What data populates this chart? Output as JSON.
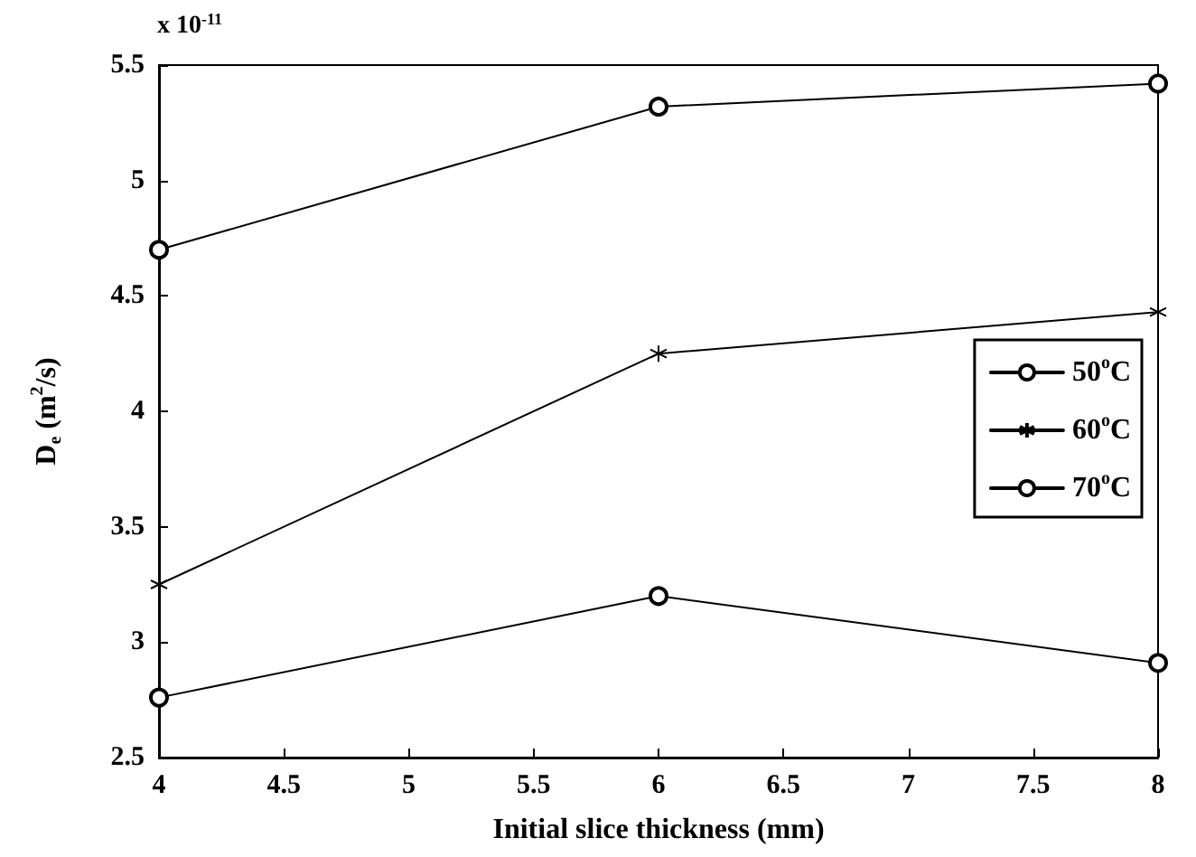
{
  "chart_data": {
    "type": "line",
    "xlabel": "Initial slice thickness (mm)",
    "ylabel": "D$_{e}$ (m$^{2}$/s)",
    "annotations": [
      "x 10$^{-11}$"
    ],
    "x": [
      4,
      6,
      8
    ],
    "series": [
      {
        "name": "50$^{o}$C",
        "color": "#000000",
        "marker": "circle",
        "values": [
          2.76,
          3.2,
          2.91
        ]
      },
      {
        "name": "60$^{o}$C",
        "color": "#000000",
        "marker": "cross",
        "values": [
          3.25,
          4.25,
          4.43
        ]
      },
      {
        "name": "70$^{o}$C",
        "color": "#000000",
        "marker": "circle",
        "values": [
          4.7,
          5.32,
          5.42
        ]
      }
    ],
    "xlim": [
      4,
      8
    ],
    "xticks": [
      4,
      4.5,
      5,
      5.5,
      6,
      6.5,
      7,
      7.5,
      8
    ],
    "ylim": [
      2.5,
      5.5
    ],
    "yticks": [
      2.5,
      3,
      3.5,
      4,
      4.5,
      5,
      5.5
    ],
    "grid": false,
    "legend": "right",
    "line_style": "solid"
  }
}
